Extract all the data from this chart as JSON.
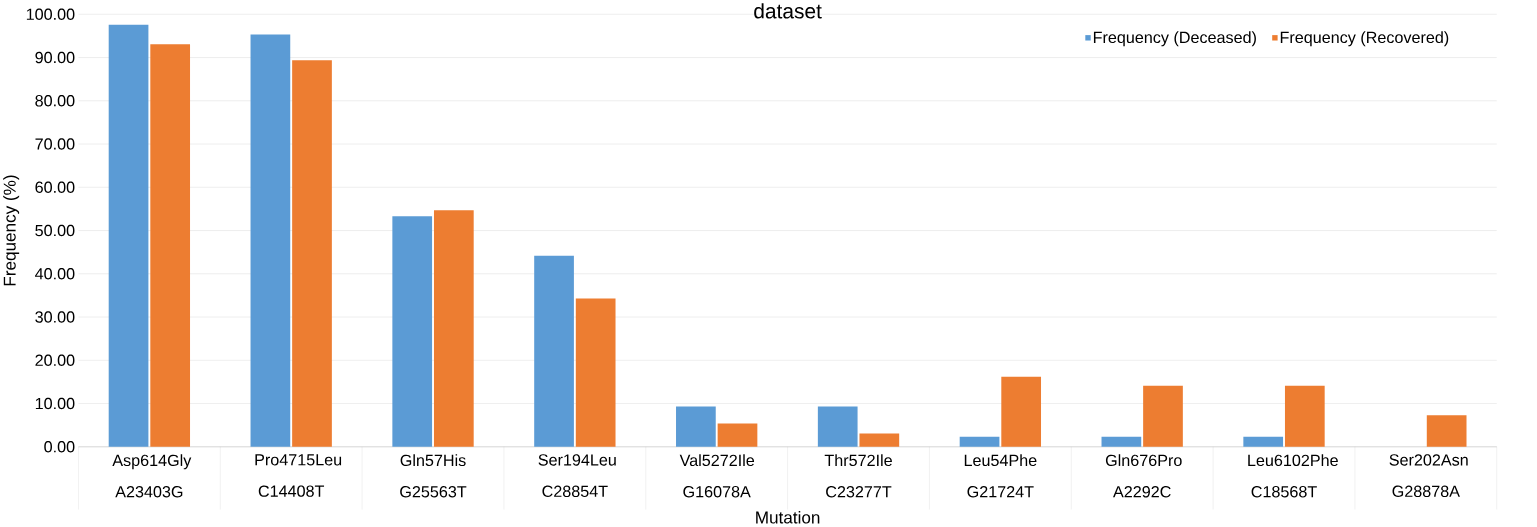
{
  "chart_data": {
    "type": "bar",
    "title": "dataset",
    "xlabel": "Mutation",
    "ylabel": "Frequency  (%)",
    "categories": [
      "Asp614Gly A23403G",
      "Pro4715Leu C14408T",
      "Gln57His G25563T",
      "Ser194Leu C28854T",
      "Val5272Ile G16078A",
      "Thr572Ile C23277T",
      "Leu54Phe G21724T",
      "Gln676Pro A2292C",
      "Leu6102Phe C18568T",
      "Ser202Asn G28878A"
    ],
    "series": [
      {
        "name": "Frequency (Deceased)",
        "color": "#5b9bd5",
        "values": [
          97.6,
          95.3,
          53.3,
          44.2,
          9.3,
          9.3,
          2.3,
          2.3,
          2.3,
          0
        ]
      },
      {
        "name": "Frequency (Recovered)",
        "color": "#ed7d31",
        "values": [
          93.1,
          89.4,
          54.7,
          34.3,
          5.4,
          3.1,
          16.2,
          14.1,
          14.1,
          7.3
        ]
      }
    ],
    "ylim": [
      0,
      100
    ],
    "yticks": [
      {
        "value": 0,
        "label": "0.00"
      },
      {
        "value": 10,
        "label": "10.00"
      },
      {
        "value": 20,
        "label": "20.00"
      },
      {
        "value": 30,
        "label": "30.00"
      },
      {
        "value": 40,
        "label": "40.00"
      },
      {
        "value": 50,
        "label": "50.00"
      },
      {
        "value": 60,
        "label": "60.00"
      },
      {
        "value": 70,
        "label": "70.00"
      },
      {
        "value": 80,
        "label": "80.00"
      },
      {
        "value": 90,
        "label": "90.00"
      },
      {
        "value": 100,
        "label": "100.00"
      }
    ],
    "grid": "y",
    "legend": "top right"
  }
}
